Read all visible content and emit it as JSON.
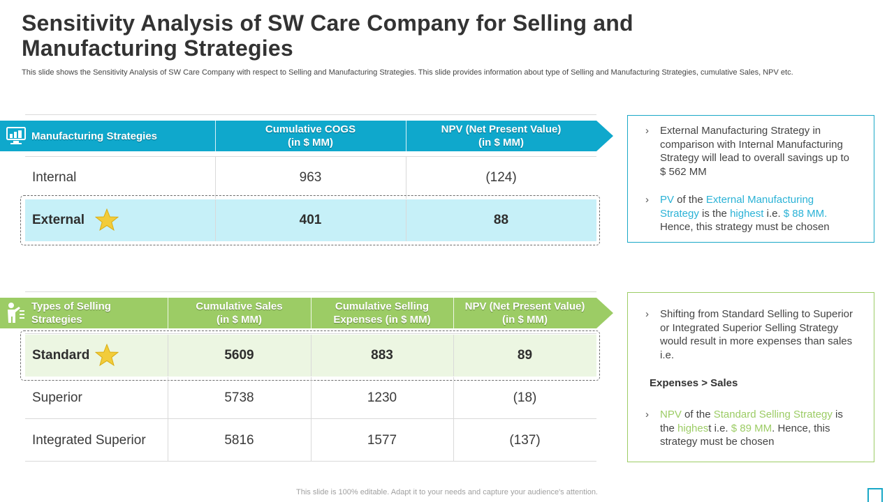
{
  "header": {
    "title": "Sensitivity Analysis of SW Care Company for Selling and Manufacturing Strategies",
    "subtitle": "This slide shows the Sensitivity Analysis of SW Care Company with respect to Selling and Manufacturing Strategies. This slide provides information about type of Selling and Manufacturing Strategies, cumulative Sales, NPV etc."
  },
  "manufacturing": {
    "headers": [
      "Manufacturing Strategies",
      "Cumulative COGS\n(in $ MM)",
      "NPV (Net Present Value)\n(in $ MM)"
    ],
    "rows": [
      {
        "name": "Internal",
        "cogs": "963",
        "npv": "(124)"
      },
      {
        "name": "External",
        "cogs": "401",
        "npv": "88"
      }
    ]
  },
  "selling": {
    "headers": [
      "Types of Selling\nStrategies",
      "Cumulative Sales\n(in $ MM)",
      "Cumulative Selling\nExpenses  (in $ MM)",
      "NPV (Net Present Value)\n(in $ MM)"
    ],
    "rows": [
      {
        "name": "Standard",
        "sales": "5609",
        "expenses": "883",
        "npv": "89"
      },
      {
        "name": "Superior",
        "sales": "5738",
        "expenses": "1230",
        "npv": "(18)"
      },
      {
        "name": "Integrated Superior",
        "sales": "5816",
        "expenses": "1577",
        "npv": "(137)"
      }
    ]
  },
  "notes": {
    "manufacturing": {
      "bullet1": "External Manufacturing Strategy in comparison with Internal Manufacturing Strategy will lead to overall savings up to $ 562 MM",
      "bullet2": {
        "p1": "PV",
        "p2": " of the ",
        "p3": "External Manufacturing Strategy",
        "p4": " is the ",
        "p5": "highest",
        "p6": " i.e. ",
        "p7": "$ 88 MM.",
        "p8": " Hence, this strategy must be chosen"
      }
    },
    "selling": {
      "bullet1": "Shifting from Standard Selling to Superior or Integrated  Superior Selling Strategy would result in more expenses than sales i.e.",
      "emphasis": "Expenses > Sales",
      "bullet2": {
        "p1": "NPV",
        "p2": " of the ",
        "p3": "Standard Selling Strategy",
        "p4": " is the ",
        "p5": "highes",
        "p6": "t i.e. ",
        "p7": "$ 89 MM",
        "p8": ". Hence, this strategy must be chosen"
      }
    }
  },
  "footer": "This slide is 100% editable. Adapt it to your needs and capture your audience's attention.",
  "colors": {
    "teal": "#0fa8cc",
    "teal_light": "#c6f0f8",
    "green": "#9ccc65",
    "green_light": "#ecf6e2",
    "star": "#f2cc3a"
  },
  "chevron": "›"
}
